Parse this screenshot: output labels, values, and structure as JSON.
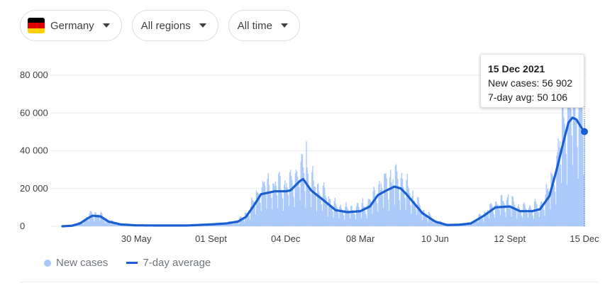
{
  "filters": {
    "country": "Germany",
    "region": "All regions",
    "time": "All time",
    "flag_colors": [
      "#000000",
      "#dd0000",
      "#ffce00"
    ]
  },
  "tooltip": {
    "date": "15 Dec 2021",
    "new_cases": "New cases: 56 902",
    "avg": "7-day avg: 50 106"
  },
  "legend": {
    "new_cases": "New cases",
    "avg": "7-day average"
  },
  "colors": {
    "bars": "#a8c7fa",
    "line": "#1a5fd1",
    "grid": "#e8eaed"
  },
  "chart_data": {
    "type": "area",
    "x_axis_labels": [
      "30 May",
      "01 Sept",
      "04 Dec",
      "08 Mar",
      "10 Jun",
      "12 Sept",
      "15 Dec"
    ],
    "y_axis_labels": [
      "0",
      "20 000",
      "40 000",
      "60 000",
      "80 000"
    ],
    "ylim": [
      0,
      80000
    ],
    "grid": true,
    "series": [
      {
        "name": "7-day average",
        "x": [
          "2020-02-27",
          "2020-03-10",
          "2020-03-20",
          "2020-03-31",
          "2020-04-05",
          "2020-04-15",
          "2020-04-25",
          "2020-05-10",
          "2020-05-30",
          "2020-07-01",
          "2020-08-01",
          "2020-09-01",
          "2020-09-20",
          "2020-10-05",
          "2020-10-15",
          "2020-10-25",
          "2020-11-03",
          "2020-11-20",
          "2020-12-04",
          "2020-12-10",
          "2020-12-22",
          "2020-12-26",
          "2021-01-05",
          "2021-01-20",
          "2021-02-05",
          "2021-02-20",
          "2021-03-08",
          "2021-03-20",
          "2021-03-30",
          "2021-04-10",
          "2021-04-20",
          "2021-04-28",
          "2021-05-05",
          "2021-05-15",
          "2021-05-25",
          "2021-06-10",
          "2021-06-25",
          "2021-07-10",
          "2021-07-25",
          "2021-08-10",
          "2021-08-25",
          "2021-09-12",
          "2021-09-25",
          "2021-10-10",
          "2021-10-20",
          "2021-11-01",
          "2021-11-10",
          "2021-11-20",
          "2021-11-25",
          "2021-11-30",
          "2021-12-05",
          "2021-12-10",
          "2021-12-15"
        ],
        "values": [
          0,
          300,
          1500,
          4500,
          5600,
          5200,
          2500,
          1000,
          500,
          400,
          400,
          1000,
          1500,
          2500,
          5000,
          11000,
          17000,
          18500,
          18500,
          19000,
          24000,
          25000,
          19000,
          14000,
          8500,
          7500,
          8000,
          10500,
          16500,
          19000,
          21000,
          20000,
          17000,
          12000,
          7000,
          2500,
          700,
          800,
          1500,
          5500,
          10000,
          10500,
          8000,
          8000,
          9000,
          16000,
          30000,
          47000,
          55000,
          57500,
          56500,
          53000,
          50106
        ]
      },
      {
        "name": "New cases",
        "peaks": [
          {
            "x": "2020-04-01",
            "value": 6800
          },
          {
            "x": "2020-12-18",
            "value": 29000
          },
          {
            "x": "2020-12-30",
            "value": 45000
          },
          {
            "x": "2021-04-15",
            "value": 30000
          },
          {
            "x": "2021-09-10",
            "value": 17000
          },
          {
            "x": "2021-11-25",
            "value": 76000
          },
          {
            "x": "2021-12-15",
            "value": 56902
          }
        ]
      }
    ]
  }
}
